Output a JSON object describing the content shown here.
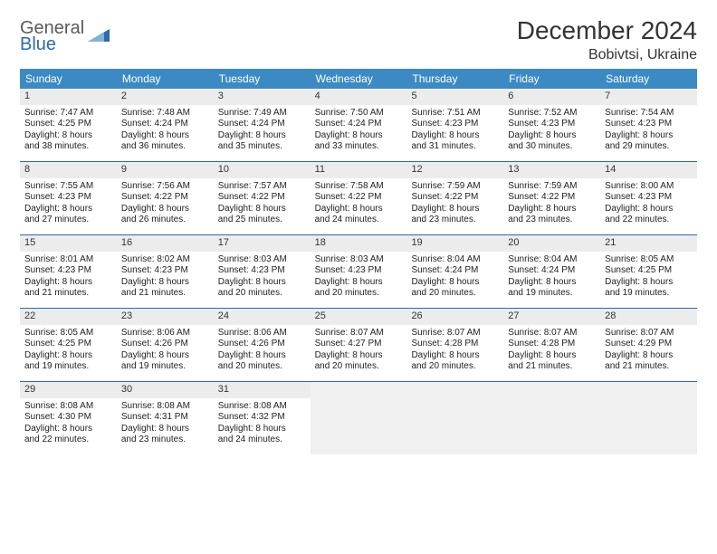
{
  "brand": {
    "line1": "General",
    "line2": "Blue"
  },
  "title": "December 2024",
  "location": "Bobivtsi, Ukraine",
  "colors": {
    "header_bg": "#3b8ac4",
    "week_border": "#2f6aa8",
    "daynum_bg": "#ececec",
    "empty_bg": "#f0f0f0",
    "text": "#222222",
    "logo_gray": "#5a5a5a",
    "logo_blue": "#2f6aa8"
  },
  "weekdays": [
    "Sunday",
    "Monday",
    "Tuesday",
    "Wednesday",
    "Thursday",
    "Friday",
    "Saturday"
  ],
  "weeks": [
    [
      {
        "n": "1",
        "sr": "Sunrise: 7:47 AM",
        "ss": "Sunset: 4:25 PM",
        "d1": "Daylight: 8 hours",
        "d2": "and 38 minutes."
      },
      {
        "n": "2",
        "sr": "Sunrise: 7:48 AM",
        "ss": "Sunset: 4:24 PM",
        "d1": "Daylight: 8 hours",
        "d2": "and 36 minutes."
      },
      {
        "n": "3",
        "sr": "Sunrise: 7:49 AM",
        "ss": "Sunset: 4:24 PM",
        "d1": "Daylight: 8 hours",
        "d2": "and 35 minutes."
      },
      {
        "n": "4",
        "sr": "Sunrise: 7:50 AM",
        "ss": "Sunset: 4:24 PM",
        "d1": "Daylight: 8 hours",
        "d2": "and 33 minutes."
      },
      {
        "n": "5",
        "sr": "Sunrise: 7:51 AM",
        "ss": "Sunset: 4:23 PM",
        "d1": "Daylight: 8 hours",
        "d2": "and 31 minutes."
      },
      {
        "n": "6",
        "sr": "Sunrise: 7:52 AM",
        "ss": "Sunset: 4:23 PM",
        "d1": "Daylight: 8 hours",
        "d2": "and 30 minutes."
      },
      {
        "n": "7",
        "sr": "Sunrise: 7:54 AM",
        "ss": "Sunset: 4:23 PM",
        "d1": "Daylight: 8 hours",
        "d2": "and 29 minutes."
      }
    ],
    [
      {
        "n": "8",
        "sr": "Sunrise: 7:55 AM",
        "ss": "Sunset: 4:23 PM",
        "d1": "Daylight: 8 hours",
        "d2": "and 27 minutes."
      },
      {
        "n": "9",
        "sr": "Sunrise: 7:56 AM",
        "ss": "Sunset: 4:22 PM",
        "d1": "Daylight: 8 hours",
        "d2": "and 26 minutes."
      },
      {
        "n": "10",
        "sr": "Sunrise: 7:57 AM",
        "ss": "Sunset: 4:22 PM",
        "d1": "Daylight: 8 hours",
        "d2": "and 25 minutes."
      },
      {
        "n": "11",
        "sr": "Sunrise: 7:58 AM",
        "ss": "Sunset: 4:22 PM",
        "d1": "Daylight: 8 hours",
        "d2": "and 24 minutes."
      },
      {
        "n": "12",
        "sr": "Sunrise: 7:59 AM",
        "ss": "Sunset: 4:22 PM",
        "d1": "Daylight: 8 hours",
        "d2": "and 23 minutes."
      },
      {
        "n": "13",
        "sr": "Sunrise: 7:59 AM",
        "ss": "Sunset: 4:22 PM",
        "d1": "Daylight: 8 hours",
        "d2": "and 23 minutes."
      },
      {
        "n": "14",
        "sr": "Sunrise: 8:00 AM",
        "ss": "Sunset: 4:23 PM",
        "d1": "Daylight: 8 hours",
        "d2": "and 22 minutes."
      }
    ],
    [
      {
        "n": "15",
        "sr": "Sunrise: 8:01 AM",
        "ss": "Sunset: 4:23 PM",
        "d1": "Daylight: 8 hours",
        "d2": "and 21 minutes."
      },
      {
        "n": "16",
        "sr": "Sunrise: 8:02 AM",
        "ss": "Sunset: 4:23 PM",
        "d1": "Daylight: 8 hours",
        "d2": "and 21 minutes."
      },
      {
        "n": "17",
        "sr": "Sunrise: 8:03 AM",
        "ss": "Sunset: 4:23 PM",
        "d1": "Daylight: 8 hours",
        "d2": "and 20 minutes."
      },
      {
        "n": "18",
        "sr": "Sunrise: 8:03 AM",
        "ss": "Sunset: 4:23 PM",
        "d1": "Daylight: 8 hours",
        "d2": "and 20 minutes."
      },
      {
        "n": "19",
        "sr": "Sunrise: 8:04 AM",
        "ss": "Sunset: 4:24 PM",
        "d1": "Daylight: 8 hours",
        "d2": "and 20 minutes."
      },
      {
        "n": "20",
        "sr": "Sunrise: 8:04 AM",
        "ss": "Sunset: 4:24 PM",
        "d1": "Daylight: 8 hours",
        "d2": "and 19 minutes."
      },
      {
        "n": "21",
        "sr": "Sunrise: 8:05 AM",
        "ss": "Sunset: 4:25 PM",
        "d1": "Daylight: 8 hours",
        "d2": "and 19 minutes."
      }
    ],
    [
      {
        "n": "22",
        "sr": "Sunrise: 8:05 AM",
        "ss": "Sunset: 4:25 PM",
        "d1": "Daylight: 8 hours",
        "d2": "and 19 minutes."
      },
      {
        "n": "23",
        "sr": "Sunrise: 8:06 AM",
        "ss": "Sunset: 4:26 PM",
        "d1": "Daylight: 8 hours",
        "d2": "and 19 minutes."
      },
      {
        "n": "24",
        "sr": "Sunrise: 8:06 AM",
        "ss": "Sunset: 4:26 PM",
        "d1": "Daylight: 8 hours",
        "d2": "and 20 minutes."
      },
      {
        "n": "25",
        "sr": "Sunrise: 8:07 AM",
        "ss": "Sunset: 4:27 PM",
        "d1": "Daylight: 8 hours",
        "d2": "and 20 minutes."
      },
      {
        "n": "26",
        "sr": "Sunrise: 8:07 AM",
        "ss": "Sunset: 4:28 PM",
        "d1": "Daylight: 8 hours",
        "d2": "and 20 minutes."
      },
      {
        "n": "27",
        "sr": "Sunrise: 8:07 AM",
        "ss": "Sunset: 4:28 PM",
        "d1": "Daylight: 8 hours",
        "d2": "and 21 minutes."
      },
      {
        "n": "28",
        "sr": "Sunrise: 8:07 AM",
        "ss": "Sunset: 4:29 PM",
        "d1": "Daylight: 8 hours",
        "d2": "and 21 minutes."
      }
    ],
    [
      {
        "n": "29",
        "sr": "Sunrise: 8:08 AM",
        "ss": "Sunset: 4:30 PM",
        "d1": "Daylight: 8 hours",
        "d2": "and 22 minutes."
      },
      {
        "n": "30",
        "sr": "Sunrise: 8:08 AM",
        "ss": "Sunset: 4:31 PM",
        "d1": "Daylight: 8 hours",
        "d2": "and 23 minutes."
      },
      {
        "n": "31",
        "sr": "Sunrise: 8:08 AM",
        "ss": "Sunset: 4:32 PM",
        "d1": "Daylight: 8 hours",
        "d2": "and 24 minutes."
      },
      {
        "empty": true
      },
      {
        "empty": true
      },
      {
        "empty": true
      },
      {
        "empty": true
      }
    ]
  ]
}
